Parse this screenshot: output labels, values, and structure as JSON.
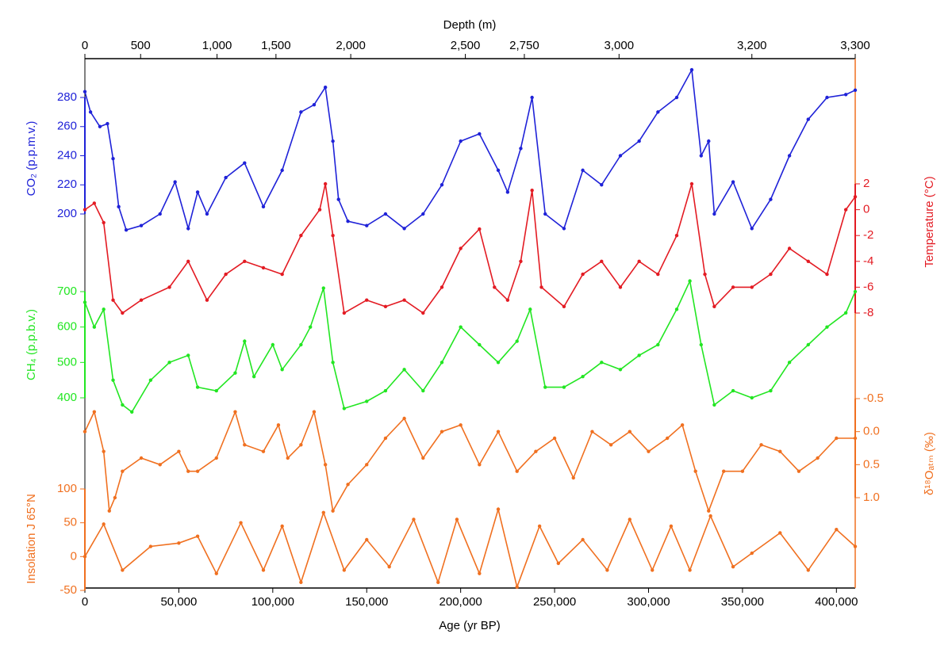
{
  "chart_data": {
    "type": "line",
    "xlabel": "Age (yr BP)",
    "x2label": "Depth (m)",
    "xlim": [
      0,
      410000
    ],
    "xticks": [
      0,
      {
        "value": 50000,
        "label": "50,000"
      },
      {
        "value": 100000,
        "label": "100,000"
      },
      {
        "value": 150000,
        "label": "150,000"
      },
      {
        "value": 200000,
        "label": "200,000"
      },
      {
        "value": 250000,
        "label": "250,000"
      },
      {
        "value": 300000,
        "label": "300,000"
      },
      {
        "value": 350000,
        "label": "350,000"
      },
      {
        "value": 400000,
        "label": "400,000"
      }
    ],
    "x2ticks": [
      {
        "value": 0,
        "label": "0"
      },
      {
        "value": 29660,
        "label": "500"
      },
      {
        "value": 70340,
        "label": "1,000"
      },
      {
        "value": 101700,
        "label": "1,500"
      },
      {
        "value": 141500,
        "label": "2,000"
      },
      {
        "value": 202500,
        "label": "2,500"
      },
      {
        "value": 233900,
        "label": "2,750"
      },
      {
        "value": 284300,
        "label": "3,000"
      },
      {
        "value": 355000,
        "label": "3,200"
      },
      {
        "value": 410000,
        "label": "3,300"
      }
    ],
    "panels": [
      {
        "label": "CO₂ (p.p.m.v.)",
        "side": "left",
        "color": "#1f22d8",
        "ylim": [
          200,
          280
        ],
        "yticks": [
          200,
          220,
          240,
          260,
          280
        ],
        "x": [
          0,
          3000,
          8000,
          12000,
          15000,
          18000,
          22000,
          30000,
          40000,
          48000,
          55000,
          60000,
          65000,
          75000,
          85000,
          95000,
          105000,
          115000,
          122000,
          128000,
          132000,
          135000,
          140000,
          150000,
          160000,
          170000,
          180000,
          190000,
          200000,
          210000,
          220000,
          225000,
          232000,
          238000,
          245000,
          255000,
          265000,
          275000,
          285000,
          295000,
          305000,
          315000,
          323000,
          328000,
          332000,
          335000,
          345000,
          355000,
          365000,
          375000,
          385000,
          395000,
          405000,
          410000
        ],
        "values": [
          284,
          270,
          260,
          262,
          238,
          205,
          189,
          192,
          200,
          222,
          190,
          215,
          200,
          225,
          235,
          205,
          230,
          270,
          275,
          287,
          250,
          210,
          195,
          192,
          200,
          190,
          200,
          220,
          250,
          255,
          230,
          215,
          245,
          280,
          200,
          190,
          230,
          220,
          240,
          250,
          270,
          280,
          299,
          240,
          250,
          200,
          222,
          190,
          210,
          240,
          265,
          280,
          282,
          285
        ]
      },
      {
        "label": "Temperature (°C)",
        "side": "right",
        "color": "#e31b23",
        "ylim": [
          -8,
          2
        ],
        "yticks": [
          2,
          0,
          -2,
          -4,
          -6,
          -8
        ],
        "x": [
          0,
          5000,
          10000,
          15000,
          20000,
          30000,
          45000,
          55000,
          65000,
          75000,
          85000,
          95000,
          105000,
          115000,
          125000,
          128000,
          132000,
          138000,
          150000,
          160000,
          170000,
          180000,
          190000,
          200000,
          210000,
          218000,
          225000,
          232000,
          238000,
          243000,
          255000,
          265000,
          275000,
          285000,
          295000,
          305000,
          315000,
          323000,
          330000,
          335000,
          345000,
          355000,
          365000,
          375000,
          385000,
          395000,
          405000,
          410000
        ],
        "values": [
          0,
          0.5,
          -1,
          -7,
          -8,
          -7,
          -6,
          -4,
          -7,
          -5,
          -4,
          -4.5,
          -5,
          -2,
          0,
          2,
          -2,
          -8,
          -7,
          -7.5,
          -7,
          -8,
          -6,
          -3,
          -1.5,
          -6,
          -7,
          -4,
          1.5,
          -6,
          -7.5,
          -5,
          -4,
          -6,
          -4,
          -5,
          -2,
          2,
          -5,
          -7.5,
          -6,
          -6,
          -5,
          -3,
          -4,
          -5,
          0,
          1
        ]
      },
      {
        "label": "CH₄ (p.p.b.v.)",
        "side": "left",
        "color": "#22e622",
        "ylim": [
          400,
          700
        ],
        "yticks": [
          400,
          500,
          600,
          700
        ],
        "x": [
          0,
          5000,
          10000,
          15000,
          20000,
          25000,
          35000,
          45000,
          55000,
          60000,
          70000,
          80000,
          85000,
          90000,
          100000,
          105000,
          115000,
          120000,
          127000,
          132000,
          138000,
          150000,
          160000,
          170000,
          180000,
          190000,
          200000,
          210000,
          220000,
          230000,
          237000,
          245000,
          255000,
          265000,
          275000,
          285000,
          295000,
          305000,
          315000,
          322000,
          328000,
          335000,
          345000,
          355000,
          365000,
          375000,
          385000,
          395000,
          405000,
          410000
        ],
        "values": [
          670,
          600,
          650,
          450,
          380,
          360,
          450,
          500,
          520,
          430,
          420,
          470,
          560,
          460,
          550,
          480,
          550,
          600,
          710,
          500,
          370,
          390,
          420,
          480,
          420,
          500,
          600,
          550,
          500,
          560,
          650,
          430,
          430,
          460,
          500,
          480,
          520,
          550,
          650,
          730,
          550,
          380,
          420,
          400,
          420,
          500,
          550,
          600,
          640,
          700
        ]
      },
      {
        "label": "δ¹⁸Oₐₜₘ (‰)",
        "side": "right",
        "color": "#f07020",
        "ylim": [
          -0.5,
          1.0
        ],
        "yticks": [
          -0.5,
          {
            "value": 0.0,
            "label": "0.0"
          },
          0.5,
          {
            "value": 1.0,
            "label": "1.0"
          }
        ],
        "x": [
          0,
          5000,
          10000,
          13000,
          16000,
          20000,
          30000,
          40000,
          50000,
          55000,
          60000,
          70000,
          80000,
          85000,
          95000,
          103000,
          108000,
          115000,
          122000,
          128000,
          132000,
          140000,
          150000,
          160000,
          170000,
          180000,
          190000,
          200000,
          210000,
          220000,
          230000,
          240000,
          250000,
          260000,
          270000,
          280000,
          290000,
          300000,
          310000,
          318000,
          325000,
          332000,
          340000,
          350000,
          360000,
          370000,
          380000,
          390000,
          400000,
          410000
        ],
        "values": [
          0.0,
          -0.3,
          0.3,
          1.2,
          1.0,
          0.6,
          0.4,
          0.5,
          0.3,
          0.6,
          0.6,
          0.4,
          -0.3,
          0.2,
          0.3,
          -0.1,
          0.4,
          0.2,
          -0.3,
          0.5,
          1.2,
          0.8,
          0.5,
          0.1,
          -0.2,
          0.4,
          0.0,
          -0.1,
          0.5,
          0.0,
          0.6,
          0.3,
          0.1,
          0.7,
          0.0,
          0.2,
          0.0,
          0.3,
          0.1,
          -0.1,
          0.6,
          1.2,
          0.6,
          0.6,
          0.2,
          0.3,
          0.6,
          0.4,
          0.1,
          0.1
        ]
      },
      {
        "label": "Insolation J 65°N",
        "side": "left",
        "color": "#f07020",
        "ylim": [
          -50,
          100
        ],
        "yticks": [
          -50,
          0,
          50,
          100
        ],
        "x": [
          0,
          10000,
          20000,
          35000,
          50000,
          60000,
          70000,
          83000,
          95000,
          105000,
          115000,
          127000,
          138000,
          150000,
          162000,
          175000,
          188000,
          198000,
          210000,
          220000,
          230000,
          242000,
          252000,
          265000,
          278000,
          290000,
          302000,
          312000,
          322000,
          333000,
          345000,
          355000,
          370000,
          385000,
          400000,
          410000
        ],
        "values": [
          0,
          48,
          -20,
          15,
          20,
          30,
          -25,
          50,
          -20,
          45,
          -38,
          65,
          -20,
          25,
          -15,
          55,
          -38,
          55,
          -25,
          70,
          -45,
          45,
          -10,
          25,
          -20,
          55,
          -20,
          45,
          -20,
          60,
          -15,
          5,
          35,
          -20,
          40,
          15
        ]
      }
    ]
  }
}
